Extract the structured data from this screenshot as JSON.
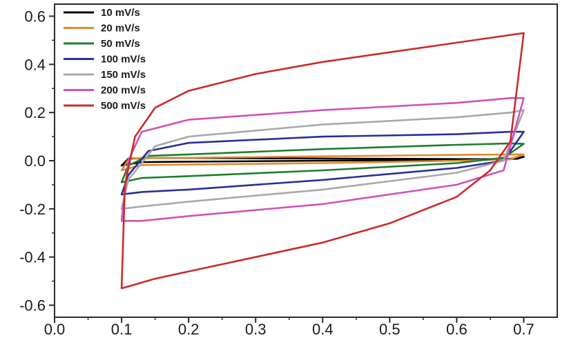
{
  "chart_data": {
    "type": "line",
    "title": "",
    "xlabel": "",
    "ylabel": "",
    "xlim": [
      0.0,
      0.75
    ],
    "ylim": [
      -0.65,
      0.65
    ],
    "x_ticks": [
      0.0,
      0.1,
      0.2,
      0.3,
      0.4,
      0.5,
      0.6,
      0.7
    ],
    "x_tick_labels": [
      "0.0",
      "0.1",
      "0.2",
      "0.3",
      "0.4",
      "0.5",
      "0.6",
      "0.7"
    ],
    "y_ticks": [
      0.6,
      0.4,
      0.2,
      0.0,
      -0.2,
      -0.4,
      -0.6
    ],
    "y_tick_labels": [
      "0.6",
      "0.4",
      "0.2",
      "0.0",
      "-0.2",
      "-0.4",
      "-0.6"
    ],
    "grid": false,
    "legend_position": "top-left",
    "series": [
      {
        "name": "10 mV/s",
        "color": "#000000",
        "forward": [
          [
            0.1,
            -0.02
          ],
          [
            0.13,
            -0.006
          ],
          [
            0.2,
            -0.004
          ],
          [
            0.4,
            0.0
          ],
          [
            0.6,
            0.004
          ],
          [
            0.68,
            0.008
          ],
          [
            0.7,
            0.016
          ]
        ],
        "reverse": [
          [
            0.7,
            0.016
          ],
          [
            0.69,
            0.008
          ],
          [
            0.65,
            0.006
          ],
          [
            0.5,
            0.008
          ],
          [
            0.3,
            0.01
          ],
          [
            0.15,
            0.012
          ],
          [
            0.11,
            0.008
          ],
          [
            0.1,
            -0.02
          ]
        ]
      },
      {
        "name": "20 mV/s",
        "color": "#e08a2e",
        "forward": [
          [
            0.1,
            -0.04
          ],
          [
            0.13,
            -0.018
          ],
          [
            0.2,
            -0.016
          ],
          [
            0.4,
            -0.01
          ],
          [
            0.6,
            0.0
          ],
          [
            0.68,
            0.006
          ],
          [
            0.7,
            0.026
          ]
        ],
        "reverse": [
          [
            0.7,
            0.026
          ],
          [
            0.69,
            0.026
          ],
          [
            0.6,
            0.024
          ],
          [
            0.4,
            0.018
          ],
          [
            0.2,
            0.012
          ],
          [
            0.13,
            0.012
          ],
          [
            0.11,
            0.005
          ],
          [
            0.1,
            -0.04
          ]
        ]
      },
      {
        "name": "50 mV/s",
        "color": "#1d7d2e",
        "forward": [
          [
            0.1,
            -0.09
          ],
          [
            0.13,
            -0.072
          ],
          [
            0.2,
            -0.064
          ],
          [
            0.4,
            -0.04
          ],
          [
            0.6,
            -0.01
          ],
          [
            0.67,
            0.012
          ],
          [
            0.7,
            0.07
          ]
        ],
        "reverse": [
          [
            0.7,
            0.07
          ],
          [
            0.68,
            0.072
          ],
          [
            0.6,
            0.066
          ],
          [
            0.4,
            0.048
          ],
          [
            0.2,
            0.026
          ],
          [
            0.14,
            0.02
          ],
          [
            0.11,
            -0.02
          ],
          [
            0.1,
            -0.09
          ]
        ]
      },
      {
        "name": "100 mV/s",
        "color": "#2a2f96",
        "forward": [
          [
            0.1,
            -0.14
          ],
          [
            0.13,
            -0.13
          ],
          [
            0.2,
            -0.12
          ],
          [
            0.4,
            -0.08
          ],
          [
            0.6,
            -0.03
          ],
          [
            0.67,
            0.0
          ],
          [
            0.7,
            0.12
          ]
        ],
        "reverse": [
          [
            0.7,
            0.12
          ],
          [
            0.68,
            0.12
          ],
          [
            0.6,
            0.11
          ],
          [
            0.4,
            0.1
          ],
          [
            0.2,
            0.074
          ],
          [
            0.14,
            0.04
          ],
          [
            0.11,
            -0.06
          ],
          [
            0.1,
            -0.14
          ]
        ]
      },
      {
        "name": "150 mV/s",
        "color": "#a8a8a8",
        "forward": [
          [
            0.1,
            -0.2
          ],
          [
            0.13,
            -0.19
          ],
          [
            0.2,
            -0.17
          ],
          [
            0.4,
            -0.12
          ],
          [
            0.6,
            -0.05
          ],
          [
            0.67,
            0.0
          ],
          [
            0.7,
            0.21
          ]
        ],
        "reverse": [
          [
            0.7,
            0.21
          ],
          [
            0.68,
            0.2
          ],
          [
            0.6,
            0.18
          ],
          [
            0.4,
            0.15
          ],
          [
            0.2,
            0.1
          ],
          [
            0.15,
            0.06
          ],
          [
            0.11,
            -0.08
          ],
          [
            0.1,
            -0.2
          ]
        ]
      },
      {
        "name": "200 mV/s",
        "color": "#cf52b8",
        "forward": [
          [
            0.1,
            -0.25
          ],
          [
            0.13,
            -0.25
          ],
          [
            0.2,
            -0.23
          ],
          [
            0.4,
            -0.18
          ],
          [
            0.6,
            -0.1
          ],
          [
            0.67,
            -0.04
          ],
          [
            0.7,
            0.26
          ]
        ],
        "reverse": [
          [
            0.7,
            0.26
          ],
          [
            0.68,
            0.26
          ],
          [
            0.6,
            0.24
          ],
          [
            0.4,
            0.21
          ],
          [
            0.2,
            0.17
          ],
          [
            0.13,
            0.12
          ],
          [
            0.11,
            0.0
          ],
          [
            0.1,
            -0.25
          ]
        ]
      },
      {
        "name": "500 mV/s",
        "color": "#cc2a2a",
        "forward": [
          [
            0.1,
            -0.53
          ],
          [
            0.15,
            -0.49
          ],
          [
            0.2,
            -0.46
          ],
          [
            0.3,
            -0.4
          ],
          [
            0.4,
            -0.34
          ],
          [
            0.5,
            -0.26
          ],
          [
            0.6,
            -0.15
          ],
          [
            0.65,
            -0.04
          ],
          [
            0.68,
            0.08
          ],
          [
            0.7,
            0.53
          ]
        ],
        "reverse": [
          [
            0.7,
            0.53
          ],
          [
            0.65,
            0.51
          ],
          [
            0.6,
            0.49
          ],
          [
            0.5,
            0.45
          ],
          [
            0.4,
            0.41
          ],
          [
            0.3,
            0.36
          ],
          [
            0.2,
            0.29
          ],
          [
            0.15,
            0.22
          ],
          [
            0.12,
            0.1
          ],
          [
            0.105,
            -0.1
          ],
          [
            0.1,
            -0.53
          ]
        ]
      }
    ]
  }
}
